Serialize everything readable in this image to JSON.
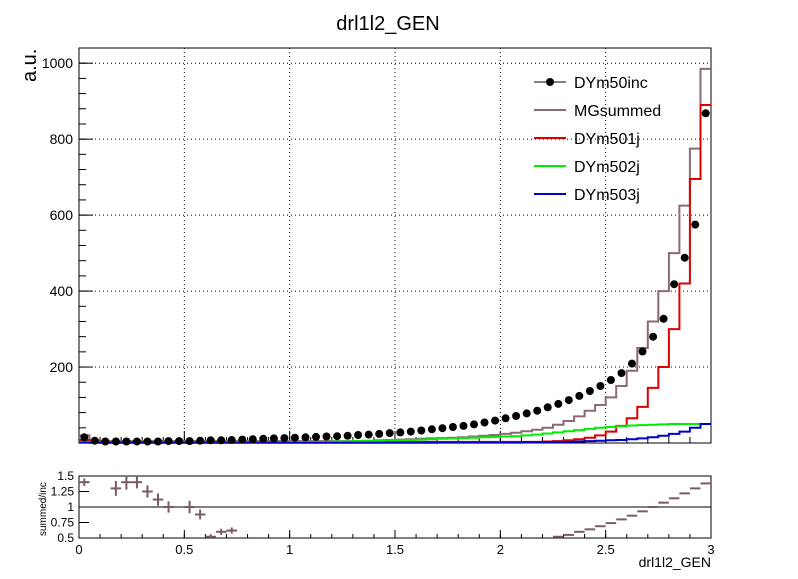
{
  "chart_data": [
    {
      "type": "line",
      "title": "drl1l2_GEN",
      "xlabel": "",
      "ylabel": "a.u.",
      "xlim": [
        0,
        3
      ],
      "ylim": [
        0,
        1040
      ],
      "x_ticks": [
        "0",
        "0.5",
        "1",
        "1.5",
        "2",
        "2.5",
        "3"
      ],
      "y_ticks": [
        {
          "v": 200,
          "label": "200"
        },
        {
          "v": 400,
          "label": "400"
        },
        {
          "v": 600,
          "label": "600"
        },
        {
          "v": 800,
          "label": "800"
        },
        {
          "v": 1000,
          "label": "1000"
        }
      ],
      "grid": true,
      "legend_position": "top-right",
      "bin_width": 0.05,
      "series": [
        {
          "name": "DYm50inc",
          "style": "markers",
          "color": "#000000",
          "x": [
            0.025,
            0.075,
            0.125,
            0.175,
            0.225,
            0.275,
            0.325,
            0.375,
            0.425,
            0.475,
            0.525,
            0.575,
            0.625,
            0.675,
            0.725,
            0.775,
            0.825,
            0.875,
            0.925,
            0.975,
            1.025,
            1.075,
            1.125,
            1.175,
            1.225,
            1.275,
            1.325,
            1.375,
            1.425,
            1.475,
            1.525,
            1.575,
            1.625,
            1.675,
            1.725,
            1.775,
            1.825,
            1.875,
            1.925,
            1.975,
            2.025,
            2.075,
            2.125,
            2.175,
            2.225,
            2.275,
            2.325,
            2.375,
            2.425,
            2.475,
            2.525,
            2.575,
            2.625,
            2.675,
            2.725,
            2.775,
            2.825,
            2.875,
            2.925,
            2.975
          ],
          "values": [
            15,
            6,
            4,
            4,
            4,
            4,
            4,
            4,
            5,
            5,
            5,
            6,
            7,
            7,
            8,
            9,
            10,
            11,
            12,
            13,
            14,
            15,
            16,
            17,
            18,
            19,
            21,
            22,
            24,
            26,
            28,
            30,
            33,
            36,
            39,
            42,
            45,
            49,
            54,
            59,
            65,
            71,
            78,
            85,
            94,
            103,
            113,
            124,
            137,
            150,
            166,
            184,
            209,
            241,
            280,
            327,
            418,
            488,
            575,
            868
          ]
        },
        {
          "name": "MGsummed",
          "style": "step",
          "color": "#8b6b72",
          "x": [
            0.025,
            0.075,
            0.125,
            0.175,
            0.225,
            0.275,
            0.325,
            0.375,
            0.425,
            0.475,
            0.525,
            0.575,
            0.625,
            0.675,
            0.725,
            0.775,
            0.825,
            0.875,
            0.925,
            0.975,
            1.025,
            1.075,
            1.125,
            1.175,
            1.225,
            1.275,
            1.325,
            1.375,
            1.425,
            1.475,
            1.525,
            1.575,
            1.625,
            1.675,
            1.725,
            1.775,
            1.825,
            1.875,
            1.925,
            1.975,
            2.025,
            2.075,
            2.125,
            2.175,
            2.225,
            2.275,
            2.325,
            2.375,
            2.425,
            2.475,
            2.525,
            2.575,
            2.625,
            2.675,
            2.725,
            2.775,
            2.825,
            2.875,
            2.925,
            2.975
          ],
          "values": [
            20,
            8,
            5,
            5,
            5,
            5,
            5,
            5,
            5,
            5,
            5,
            5,
            5,
            5,
            5,
            5,
            5,
            5,
            5,
            5,
            5,
            5,
            5,
            5,
            5,
            5,
            5,
            6,
            7,
            8,
            9,
            10,
            11,
            12,
            13,
            14,
            15,
            17,
            19,
            21,
            24,
            27,
            31,
            35,
            40,
            48,
            58,
            70,
            85,
            100,
            120,
            150,
            190,
            250,
            320,
            400,
            500,
            625,
            775,
            985
          ]
        },
        {
          "name": "DYm501j",
          "style": "step",
          "color": "#dd0000",
          "x": [
            0.025,
            0.075,
            0.125,
            0.175,
            0.225,
            0.275,
            0.325,
            0.375,
            0.425,
            0.475,
            0.525,
            0.575,
            0.625,
            0.675,
            0.725,
            0.775,
            0.825,
            0.875,
            0.925,
            0.975,
            1.025,
            1.075,
            1.125,
            1.175,
            1.225,
            1.275,
            1.325,
            1.375,
            1.425,
            1.475,
            1.525,
            1.575,
            1.625,
            1.675,
            1.725,
            1.775,
            1.825,
            1.875,
            1.925,
            1.975,
            2.025,
            2.075,
            2.125,
            2.175,
            2.225,
            2.275,
            2.325,
            2.375,
            2.425,
            2.475,
            2.525,
            2.575,
            2.625,
            2.675,
            2.725,
            2.775,
            2.825,
            2.875,
            2.925,
            2.975
          ],
          "values": [
            8,
            4,
            3,
            3,
            3,
            3,
            3,
            3,
            3,
            3,
            3,
            3,
            3,
            3,
            3,
            3,
            3,
            3,
            3,
            3,
            3,
            3,
            3,
            3,
            3,
            3,
            3,
            3,
            3,
            3,
            3,
            3,
            3,
            3,
            3,
            3,
            3,
            3,
            3,
            3,
            3,
            3,
            3,
            3,
            4,
            5,
            7,
            10,
            14,
            20,
            30,
            45,
            65,
            95,
            145,
            200,
            300,
            420,
            695,
            890
          ]
        },
        {
          "name": "DYm502j",
          "style": "step",
          "color": "#00ee00",
          "x": [
            0.025,
            0.075,
            0.125,
            0.175,
            0.225,
            0.275,
            0.325,
            0.375,
            0.425,
            0.475,
            0.525,
            0.575,
            0.625,
            0.675,
            0.725,
            0.775,
            0.825,
            0.875,
            0.925,
            0.975,
            1.025,
            1.075,
            1.125,
            1.175,
            1.225,
            1.275,
            1.325,
            1.375,
            1.425,
            1.475,
            1.525,
            1.575,
            1.625,
            1.675,
            1.725,
            1.775,
            1.825,
            1.875,
            1.925,
            1.975,
            2.025,
            2.075,
            2.125,
            2.175,
            2.225,
            2.275,
            2.325,
            2.375,
            2.425,
            2.475,
            2.525,
            2.575,
            2.625,
            2.675,
            2.725,
            2.775,
            2.825,
            2.875,
            2.925,
            2.975
          ],
          "values": [
            3,
            1,
            1,
            1,
            1,
            1,
            1,
            1,
            1,
            1,
            1,
            1,
            1,
            1,
            2,
            2,
            2,
            2,
            2,
            2,
            3,
            3,
            3,
            3,
            4,
            4,
            5,
            5,
            6,
            7,
            7,
            8,
            9,
            10,
            11,
            12,
            13,
            14,
            15,
            16,
            17,
            18,
            20,
            22,
            25,
            28,
            31,
            34,
            37,
            40,
            42,
            44,
            46,
            47,
            48,
            49,
            50,
            50,
            50,
            50
          ]
        },
        {
          "name": "DYm503j",
          "style": "step",
          "color": "#0000cc",
          "x": [
            0.025,
            0.075,
            0.125,
            0.175,
            0.225,
            0.275,
            0.325,
            0.375,
            0.425,
            0.475,
            0.525,
            0.575,
            0.625,
            0.675,
            0.725,
            0.775,
            0.825,
            0.875,
            0.925,
            0.975,
            1.025,
            1.075,
            1.125,
            1.175,
            1.225,
            1.275,
            1.325,
            1.375,
            1.425,
            1.475,
            1.525,
            1.575,
            1.625,
            1.675,
            1.725,
            1.775,
            1.825,
            1.875,
            1.925,
            1.975,
            2.025,
            2.075,
            2.125,
            2.175,
            2.225,
            2.275,
            2.325,
            2.375,
            2.425,
            2.475,
            2.525,
            2.575,
            2.625,
            2.675,
            2.725,
            2.775,
            2.825,
            2.875,
            2.925,
            2.975
          ],
          "values": [
            1,
            0.5,
            0.5,
            0.5,
            0.5,
            0.5,
            0.5,
            0.5,
            0.5,
            0.5,
            0.5,
            0.5,
            0.5,
            0.5,
            0.5,
            0.5,
            0.5,
            0.5,
            0.5,
            0.5,
            0.5,
            0.5,
            0.5,
            0.5,
            0.5,
            0.5,
            0.5,
            0.5,
            0.5,
            0.5,
            0.5,
            0.5,
            0.5,
            0.5,
            1,
            1,
            1,
            1,
            1,
            1,
            1,
            1,
            2,
            2,
            2,
            3,
            3,
            4,
            5,
            6,
            7,
            8,
            10,
            12,
            15,
            19,
            24,
            30,
            40,
            50
          ]
        }
      ]
    },
    {
      "type": "scatter",
      "xlabel": "drl1l2_GEN",
      "ylabel": "summed/inc",
      "xlim": [
        0,
        3
      ],
      "ylim": [
        0.5,
        1.5
      ],
      "x_ticks": [
        "0",
        "0.5",
        "1",
        "1.5",
        "2",
        "2.5",
        "3"
      ],
      "y_ticks": [
        {
          "v": 0.5,
          "label": "0.5"
        },
        {
          "v": 0.75,
          "label": "0.75"
        },
        {
          "v": 1.0,
          "label": "1"
        },
        {
          "v": 1.25,
          "label": "1.25"
        },
        {
          "v": 1.5,
          "label": "1.5"
        }
      ],
      "grid": false,
      "bin_width": 0.05,
      "color": "#7a5c63",
      "points": [
        {
          "x": 0.025,
          "y": 1.4,
          "err": 0.06
        },
        {
          "x": 0.175,
          "y": 1.3,
          "err": 0.12
        },
        {
          "x": 0.225,
          "y": 1.4,
          "err": 0.12
        },
        {
          "x": 0.275,
          "y": 1.4,
          "err": 0.1
        },
        {
          "x": 0.325,
          "y": 1.25,
          "err": 0.1
        },
        {
          "x": 0.375,
          "y": 1.12,
          "err": 0.1
        },
        {
          "x": 0.425,
          "y": 1.0,
          "err": 0.09
        },
        {
          "x": 0.525,
          "y": 1.0,
          "err": 0.1
        },
        {
          "x": 0.575,
          "y": 0.88,
          "err": 0.08
        },
        {
          "x": 0.625,
          "y": 0.52,
          "err": 0.04
        },
        {
          "x": 0.675,
          "y": 0.6,
          "err": 0.05
        },
        {
          "x": 0.725,
          "y": 0.62,
          "err": 0.05
        },
        {
          "x": 2.275,
          "y": 0.52,
          "err": 0.01
        },
        {
          "x": 2.325,
          "y": 0.55,
          "err": 0.01
        },
        {
          "x": 2.375,
          "y": 0.6,
          "err": 0.01
        },
        {
          "x": 2.425,
          "y": 0.64,
          "err": 0.01
        },
        {
          "x": 2.475,
          "y": 0.69,
          "err": 0.01
        },
        {
          "x": 2.525,
          "y": 0.74,
          "err": 0.01
        },
        {
          "x": 2.575,
          "y": 0.8,
          "err": 0.01
        },
        {
          "x": 2.625,
          "y": 0.86,
          "err": 0.01
        },
        {
          "x": 2.675,
          "y": 0.93,
          "err": 0.01
        },
        {
          "x": 2.725,
          "y": 1.0,
          "err": 0.01
        },
        {
          "x": 2.775,
          "y": 1.07,
          "err": 0.01
        },
        {
          "x": 2.825,
          "y": 1.14,
          "err": 0.01
        },
        {
          "x": 2.875,
          "y": 1.22,
          "err": 0.01
        },
        {
          "x": 2.925,
          "y": 1.3,
          "err": 0.01
        },
        {
          "x": 2.975,
          "y": 1.38,
          "err": 0.01
        },
        {
          "x": 3.025,
          "y": 1.46,
          "err": 0.01
        }
      ]
    }
  ]
}
